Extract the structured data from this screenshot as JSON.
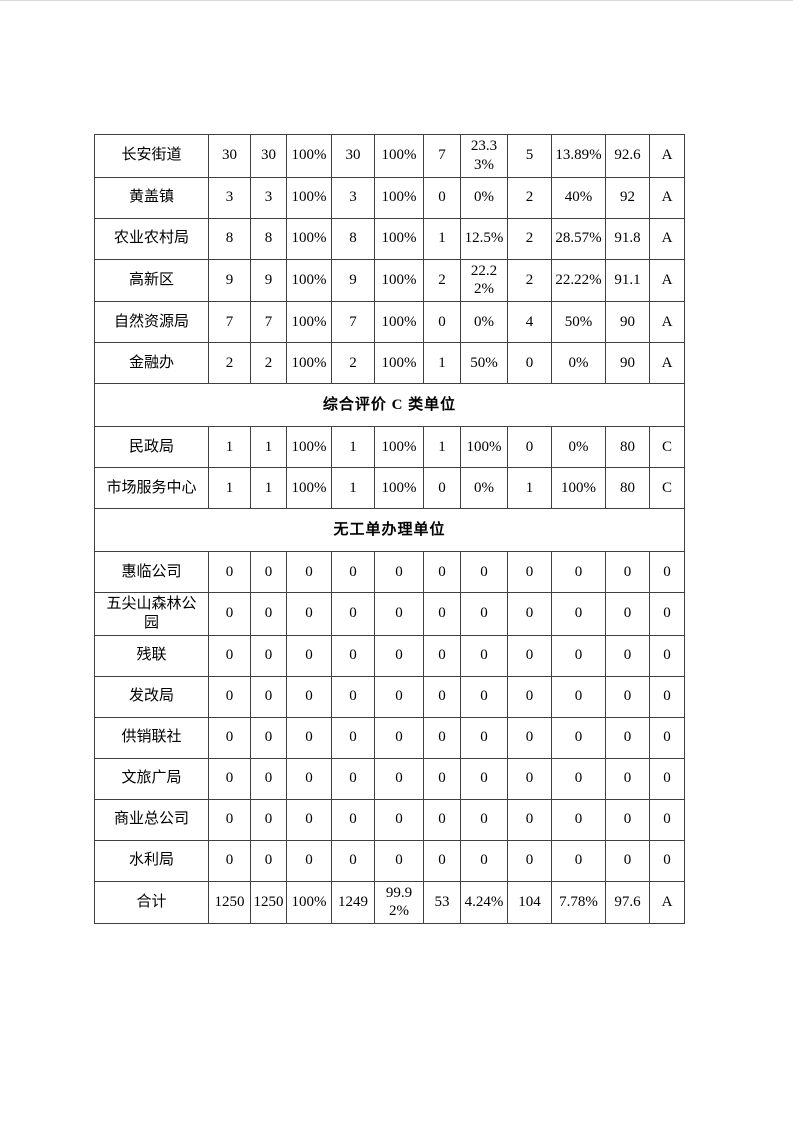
{
  "page": {
    "background": "#ffffff"
  },
  "table": {
    "border_color": "#404040",
    "column_count": 12,
    "rows": [
      {
        "type": "data",
        "cells": [
          "长安街道",
          "30",
          "30",
          "100%",
          "30",
          "100%",
          "7",
          "23.33%",
          "5",
          "13.89%",
          "92.6",
          "A"
        ]
      },
      {
        "type": "data",
        "cells": [
          "黄盖镇",
          "3",
          "3",
          "100%",
          "3",
          "100%",
          "0",
          "0%",
          "2",
          "40%",
          "92",
          "A"
        ]
      },
      {
        "type": "data",
        "cells": [
          "农业农村局",
          "8",
          "8",
          "100%",
          "8",
          "100%",
          "1",
          "12.5%",
          "2",
          "28.57%",
          "91.8",
          "A"
        ]
      },
      {
        "type": "data",
        "cells": [
          "高新区",
          "9",
          "9",
          "100%",
          "9",
          "100%",
          "2",
          "22.22%",
          "2",
          "22.22%",
          "91.1",
          "A"
        ]
      },
      {
        "type": "data",
        "cells": [
          "自然资源局",
          "7",
          "7",
          "100%",
          "7",
          "100%",
          "0",
          "0%",
          "4",
          "50%",
          "90",
          "A"
        ]
      },
      {
        "type": "data",
        "cells": [
          "金融办",
          "2",
          "2",
          "100%",
          "2",
          "100%",
          "1",
          "50%",
          "0",
          "0%",
          "90",
          "A"
        ]
      },
      {
        "type": "section",
        "label": "综合评价 C 类单位"
      },
      {
        "type": "data",
        "cells": [
          "民政局",
          "1",
          "1",
          "100%",
          "1",
          "100%",
          "1",
          "100%",
          "0",
          "0%",
          "80",
          "C"
        ]
      },
      {
        "type": "data",
        "cells": [
          "市场服务中心",
          "1",
          "1",
          "100%",
          "1",
          "100%",
          "0",
          "0%",
          "1",
          "100%",
          "80",
          "C"
        ]
      },
      {
        "type": "section",
        "label": "无工单办理单位"
      },
      {
        "type": "data",
        "cells": [
          "惠临公司",
          "0",
          "0",
          "0",
          "0",
          "0",
          "0",
          "0",
          "0",
          "0",
          "0",
          "0"
        ]
      },
      {
        "type": "data",
        "cells": [
          "五尖山森林公园",
          "0",
          "0",
          "0",
          "0",
          "0",
          "0",
          "0",
          "0",
          "0",
          "0",
          "0"
        ]
      },
      {
        "type": "data",
        "cells": [
          "残联",
          "0",
          "0",
          "0",
          "0",
          "0",
          "0",
          "0",
          "0",
          "0",
          "0",
          "0"
        ]
      },
      {
        "type": "data",
        "cells": [
          "发改局",
          "0",
          "0",
          "0",
          "0",
          "0",
          "0",
          "0",
          "0",
          "0",
          "0",
          "0"
        ]
      },
      {
        "type": "data",
        "cells": [
          "供销联社",
          "0",
          "0",
          "0",
          "0",
          "0",
          "0",
          "0",
          "0",
          "0",
          "0",
          "0"
        ]
      },
      {
        "type": "data",
        "cells": [
          "文旅广局",
          "0",
          "0",
          "0",
          "0",
          "0",
          "0",
          "0",
          "0",
          "0",
          "0",
          "0"
        ]
      },
      {
        "type": "data",
        "cells": [
          "商业总公司",
          "0",
          "0",
          "0",
          "0",
          "0",
          "0",
          "0",
          "0",
          "0",
          "0",
          "0"
        ]
      },
      {
        "type": "data",
        "cells": [
          "水利局",
          "0",
          "0",
          "0",
          "0",
          "0",
          "0",
          "0",
          "0",
          "0",
          "0",
          "0"
        ]
      },
      {
        "type": "data",
        "cells": [
          "合计",
          "1250",
          "1250",
          "100%",
          "1249",
          "99.92%",
          "53",
          "4.24%",
          "104",
          "7.78%",
          "97.6",
          "A"
        ]
      }
    ]
  }
}
